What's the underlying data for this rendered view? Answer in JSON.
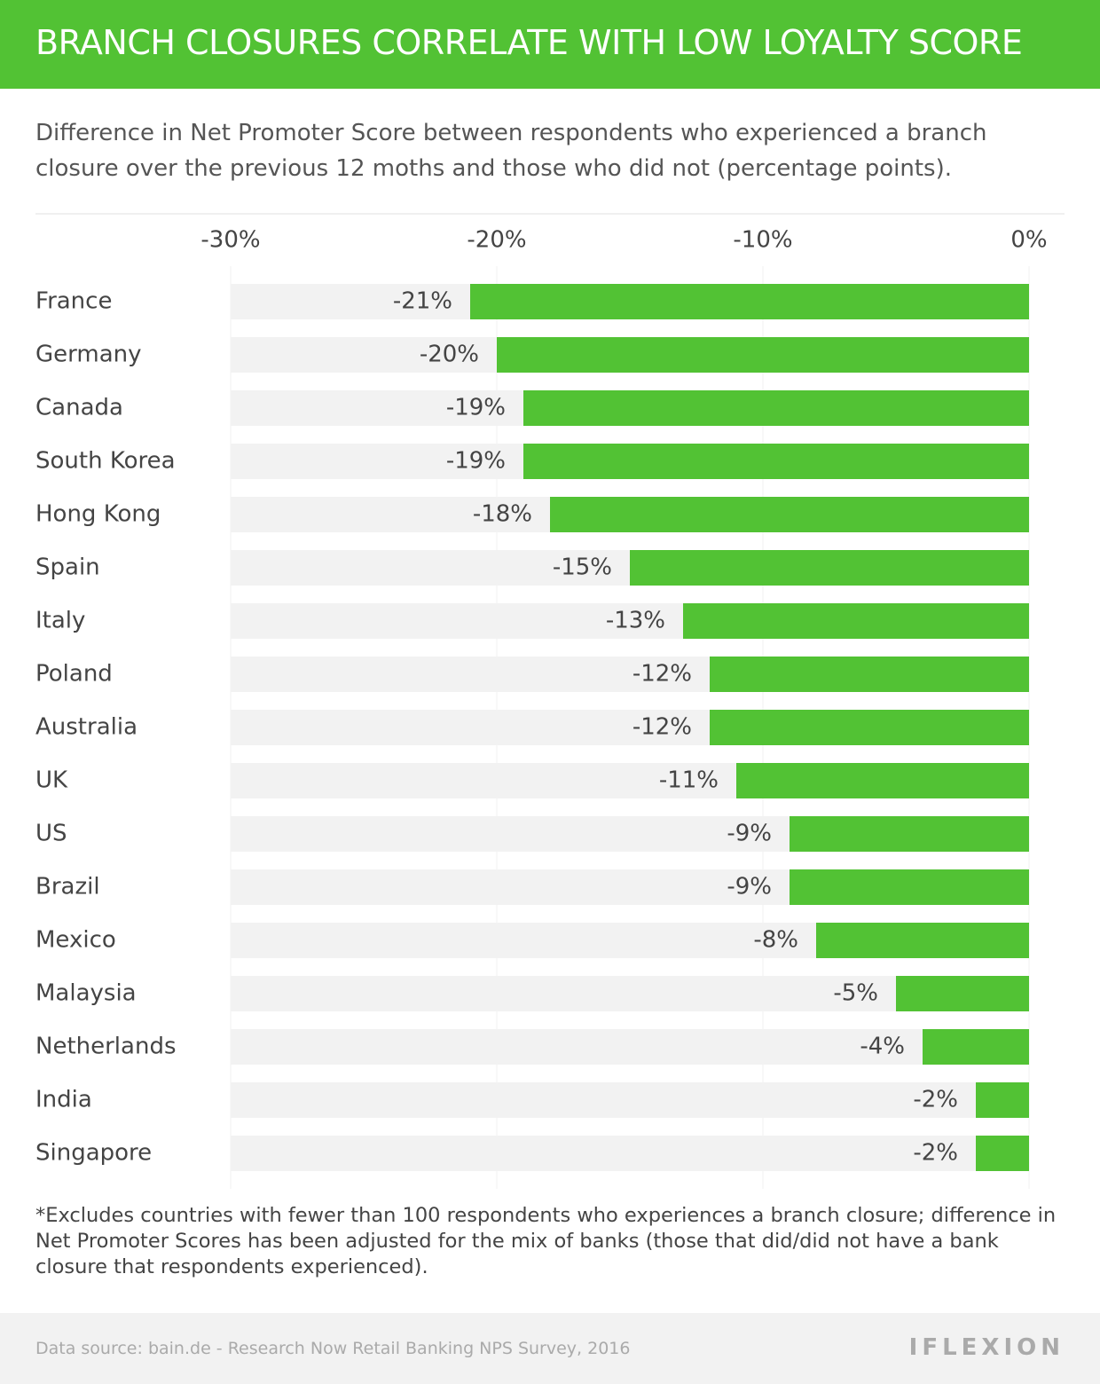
{
  "chart_data": {
    "type": "bar",
    "orientation": "horizontal",
    "title": "BRANCH CLOSURES CORRELATE WITH LOW LOYALTY SCORE",
    "subtitle": "Difference in Net Promoter Score between respondents who experienced a branch closure over the previous 12 moths and those who did not (percentage points).",
    "categories": [
      "France",
      "Germany",
      "Canada",
      "South Korea",
      "Hong Kong",
      "Spain",
      "Italy",
      "Poland",
      "Australia",
      "UK",
      "US",
      "Brazil",
      "Mexico",
      "Malaysia",
      "Netherlands",
      "India",
      "Singapore"
    ],
    "values": [
      -21,
      -20,
      -19,
      -19,
      -18,
      -15,
      -13,
      -12,
      -12,
      -11,
      -9,
      -9,
      -8,
      -5,
      -4,
      -2,
      -2
    ],
    "value_labels": [
      "-21%",
      "-20%",
      "-19%",
      "-19%",
      "-18%",
      "-15%",
      "-13%",
      "-12%",
      "-12%",
      "-11%",
      "-9%",
      "-9%",
      "-8%",
      "-5%",
      "-4%",
      "-2%",
      "-2%"
    ],
    "color": "#52c234",
    "xlim": [
      -30,
      0
    ],
    "xticks": [
      {
        "value": -30,
        "label": "-30%"
      },
      {
        "value": -20,
        "label": "-20%"
      },
      {
        "value": -10,
        "label": "-10%"
      },
      {
        "value": 0,
        "label": "0%"
      }
    ],
    "grid": true,
    "footnote": "*Excludes countries with fewer than 100 respondents who experiences a branch closure; difference in Net Promoter Scores has been adjusted for the mix of banks (those that did/did not have a bank closure that respondents experienced).",
    "source": "Data source: bain.de - Research Now Retail Banking NPS Survey, 2016",
    "logo": "IFLEXION"
  }
}
